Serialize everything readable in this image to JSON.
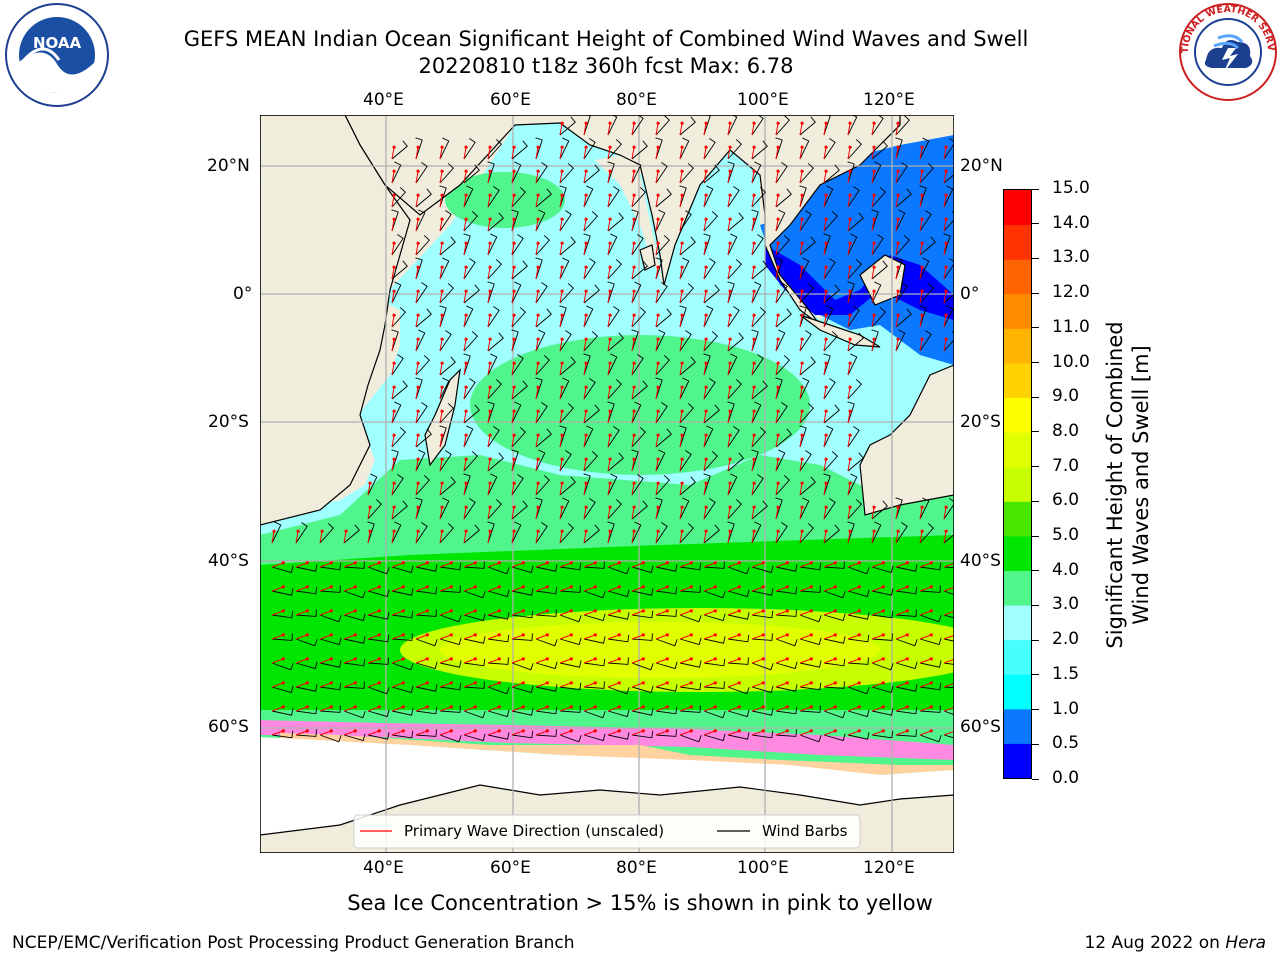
{
  "title_line1": "GEFS MEAN Indian Ocean Significant Height of Combined Wind Waves and Swell",
  "title_line2": "20220810 t18z 360h fcst   Max: 6.78",
  "map": {
    "lon_labels": [
      "40°E",
      "60°E",
      "80°E",
      "100°E",
      "120°E"
    ],
    "lat_labels": [
      "20°N",
      "0°",
      "20°S",
      "40°S",
      "60°S"
    ],
    "legend_wave": "Primary Wave Direction (unscaled)",
    "legend_wind": "Wind Barbs"
  },
  "colorbar": {
    "title_line1": "Significant Height of Combined",
    "title_line2": "Wind Waves and Swell [m]",
    "ticks": [
      "0.0",
      "0.5",
      "1.0",
      "1.5",
      "2.0",
      "3.0",
      "4.0",
      "5.0",
      "6.0",
      "7.0",
      "8.0",
      "9.0",
      "10.0",
      "11.0",
      "12.0",
      "13.0",
      "14.0",
      "15.0"
    ],
    "colors": [
      "#0000ff",
      "#0a78ff",
      "#00ffff",
      "#46ffff",
      "#a0ffff",
      "#50f58c",
      "#00e600",
      "#4be600",
      "#c8ff00",
      "#e1ff00",
      "#ffff00",
      "#ffd200",
      "#ffb400",
      "#ff8c00",
      "#ff6400",
      "#ff3200",
      "#ff0000"
    ],
    "label_low": "0.0",
    "label_high": "15.0"
  },
  "footer_note": "Sea Ice Concentration > 15% is shown in pink to yellow",
  "footer_left": "NCEP/EMC/Verification Post Processing Product Generation Branch",
  "footer_right_date": "12 Aug 2022 on ",
  "footer_right_host": "Hera",
  "logos": {
    "noaa_text": "NOAA",
    "nws_text": "NATIONAL WEATHER SERVICE"
  }
}
